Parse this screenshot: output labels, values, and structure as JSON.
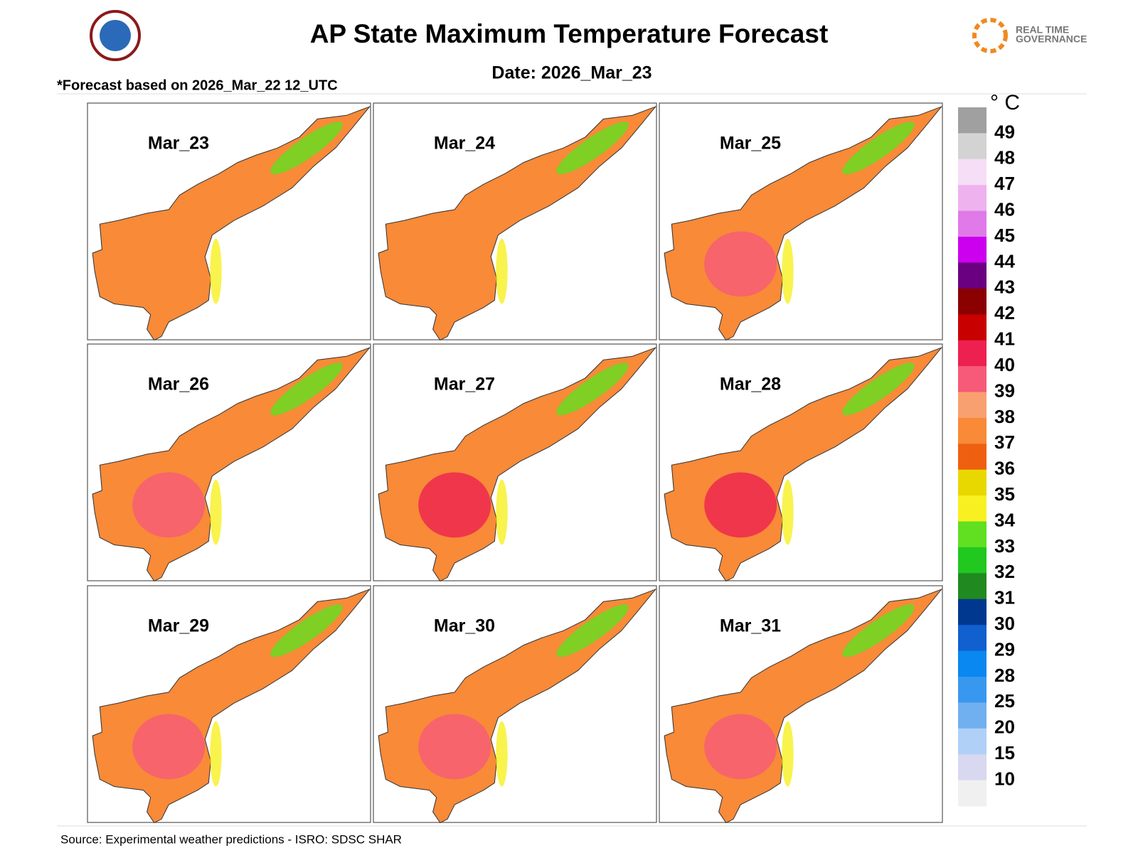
{
  "header": {
    "title": "AP State Maximum Temperature Forecast",
    "date": "Date: 2026_Mar_23",
    "note": "*Forecast based on 2026_Mar_22 12_UTC",
    "logo_text": [
      "REAL TIME",
      "GOVERNANCE"
    ]
  },
  "panels": [
    "Mar_23",
    "Mar_24",
    "Mar_25",
    "Mar_26",
    "Mar_27",
    "Mar_28",
    "Mar_29",
    "Mar_30",
    "Mar_31"
  ],
  "legend": {
    "unit": "° C",
    "labels": [
      "49",
      "48",
      "47",
      "46",
      "45",
      "44",
      "43",
      "42",
      "41",
      "40",
      "39",
      "38",
      "37",
      "36",
      "35",
      "34",
      "33",
      "32",
      "31",
      "30",
      "29",
      "28",
      "25",
      "20",
      "15",
      "10"
    ],
    "colors": [
      "#a0a0a0",
      "#d3d3d3",
      "#f6def6",
      "#eeb2ee",
      "#e07ae8",
      "#cc00ee",
      "#6a0080",
      "#8b0000",
      "#c80000",
      "#ee2050",
      "#f65a78",
      "#f9a070",
      "#f88a38",
      "#ee6010",
      "#e8d800",
      "#f8f020",
      "#60e020",
      "#20c820",
      "#208a20",
      "#003890",
      "#1060d0",
      "#0888f0",
      "#3898f0",
      "#70b0f0",
      "#b0d0f8",
      "#d8d8f0",
      "#f0f0f0"
    ]
  },
  "footer": {
    "source": "Source: Experimental weather predictions - ISRO: SDSC SHAR"
  }
}
